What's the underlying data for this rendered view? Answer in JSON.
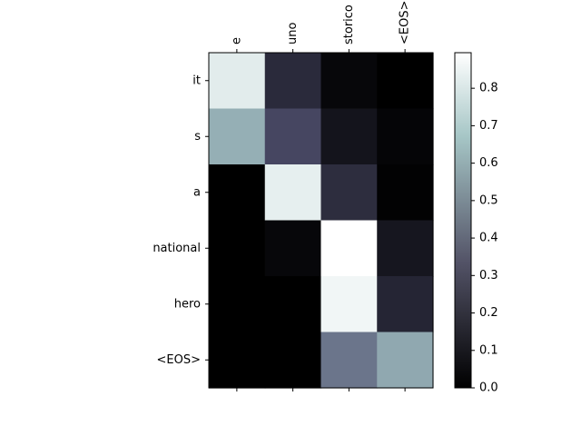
{
  "chart_data": {
    "type": "heatmap",
    "title": "",
    "xlabel": "",
    "ylabel": "",
    "x_categories": [
      "e",
      "uno",
      "storico",
      "<EOS>"
    ],
    "y_categories": [
      "it",
      "s",
      "a",
      "national",
      "hero",
      "<EOS>"
    ],
    "values": [
      [
        0.82,
        0.17,
        0.03,
        0.0
      ],
      [
        0.6,
        0.28,
        0.08,
        0.02
      ],
      [
        0.0,
        0.83,
        0.18,
        0.01
      ],
      [
        0.0,
        0.03,
        0.9,
        0.09
      ],
      [
        0.0,
        0.0,
        0.86,
        0.15
      ],
      [
        0.0,
        0.0,
        0.43,
        0.58
      ]
    ],
    "x_tick_position": "top",
    "grid": false,
    "colormap": "bone",
    "colorbar": {
      "range": [
        0.0,
        0.895
      ],
      "ticks": [
        0.0,
        0.1,
        0.2,
        0.3,
        0.4,
        0.5,
        0.6,
        0.7,
        0.8
      ],
      "tick_labels": [
        "0.0",
        "0.1",
        "0.2",
        "0.3",
        "0.4",
        "0.5",
        "0.6",
        "0.7",
        "0.8"
      ],
      "placement": "right"
    }
  }
}
